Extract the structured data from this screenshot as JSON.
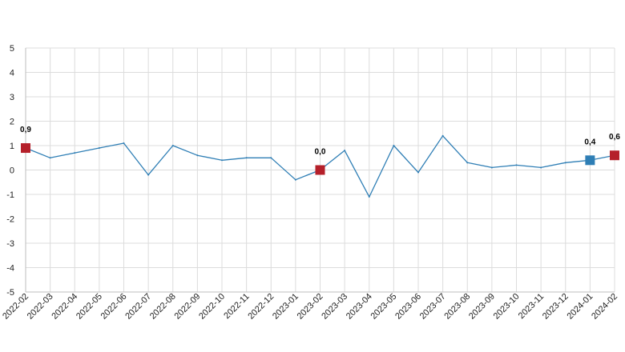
{
  "chart_data": {
    "type": "line",
    "title": "",
    "xlabel": "",
    "ylabel": "",
    "ylim": [
      -5,
      5
    ],
    "yticks": [
      5,
      4,
      3,
      2,
      1,
      0,
      -1,
      -2,
      -3,
      -4,
      -5
    ],
    "grid": true,
    "line_color": "#2e7eb5",
    "x": [
      "2022-02",
      "2022-03",
      "2022-04",
      "2022-05",
      "2022-06",
      "2022-07",
      "2022-08",
      "2022-09",
      "2022-10",
      "2022-11",
      "2022-12",
      "2023-01",
      "2023-02",
      "2023-03",
      "2023-04",
      "2023-05",
      "2023-06",
      "2023-07",
      "2023-08",
      "2023-09",
      "2023-10",
      "2023-11",
      "2023-12",
      "2024-01",
      "2024-02"
    ],
    "series": [
      {
        "values": [
          0.9,
          0.5,
          0.7,
          0.9,
          1.1,
          -0.2,
          1.0,
          0.6,
          0.4,
          0.5,
          0.5,
          -0.4,
          0.0,
          0.8,
          -1.1,
          1.0,
          -0.1,
          1.4,
          0.3,
          0.1,
          0.2,
          0.1,
          0.3,
          0.4,
          0.6
        ]
      }
    ],
    "highlights": [
      {
        "x": "2022-02",
        "value": 0.9,
        "label": "0,9",
        "color": "#b5202a"
      },
      {
        "x": "2023-02",
        "value": 0.0,
        "label": "0,0",
        "color": "#b5202a"
      },
      {
        "x": "2024-01",
        "value": 0.4,
        "label": "0,4",
        "color": "#2e7eb5"
      },
      {
        "x": "2024-02",
        "value": 0.6,
        "label": "0,6",
        "color": "#b5202a"
      }
    ]
  }
}
